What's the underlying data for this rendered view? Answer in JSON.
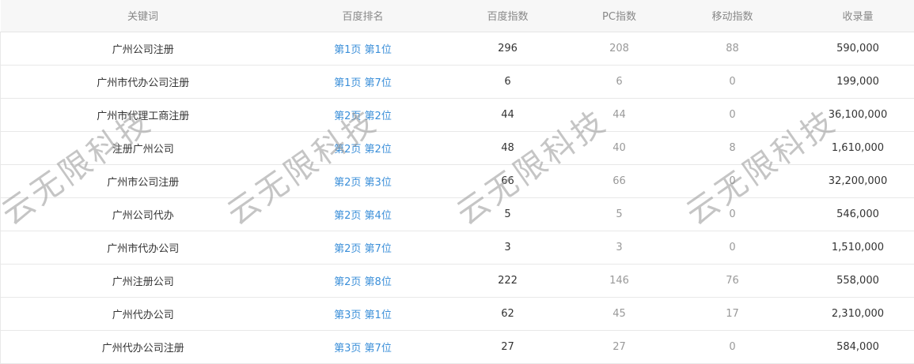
{
  "headers": [
    "关键词",
    "百度排名",
    "百度指数",
    "PC指数",
    "移动指数",
    "收录量"
  ],
  "rows": [
    [
      "广州公司注册",
      "第1页 第1位",
      "296",
      "208",
      "88",
      "590,000"
    ],
    [
      "广州市代办公司注册",
      "第1页 第7位",
      "6",
      "6",
      "0",
      "199,000"
    ],
    [
      "广州市代理工商注册",
      "第2页 第2位",
      "44",
      "44",
      "0",
      "36,100,000"
    ],
    [
      "注册广州公司",
      "第2页 第2位",
      "48",
      "40",
      "8",
      "1,610,000"
    ],
    [
      "广州市公司注册",
      "第2页 第3位",
      "66",
      "66",
      "0",
      "32,200,000"
    ],
    [
      "广州公司代办",
      "第2页 第4位",
      "5",
      "5",
      "0",
      "546,000"
    ],
    [
      "广州市代办公司",
      "第2页 第7位",
      "3",
      "3",
      "0",
      "1,510,000"
    ],
    [
      "广州注册公司",
      "第2页 第8位",
      "222",
      "146",
      "76",
      "558,000"
    ],
    [
      "广州代办公司",
      "第3页 第1位",
      "62",
      "45",
      "17",
      "2,310,000"
    ],
    [
      "广州代办公司注册",
      "第3页 第7位",
      "27",
      "27",
      "0",
      "584,000"
    ]
  ],
  "watermark": "云无限科技",
  "colors": {
    "link": "#3b8fd9",
    "header_bg": "#f7f7f7"
  }
}
